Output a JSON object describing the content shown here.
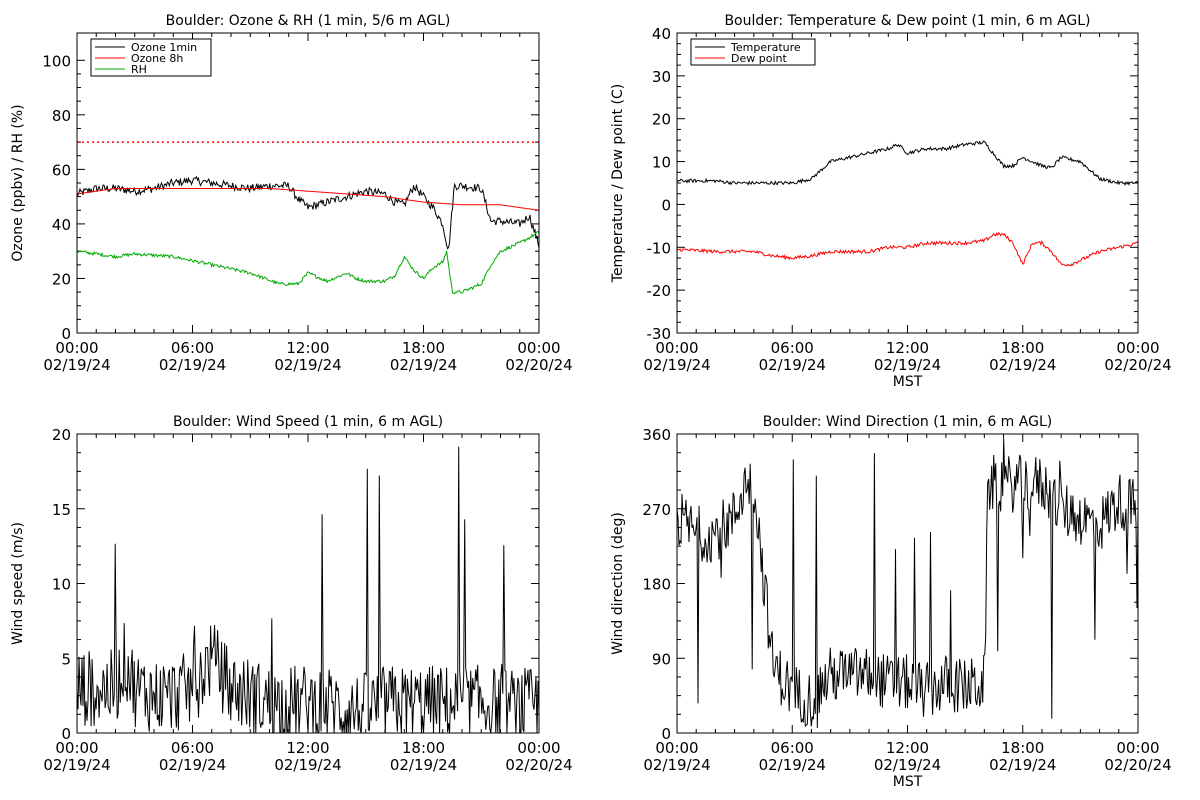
{
  "chart_data": [
    {
      "type": "line",
      "title": "Boulder: Ozone & RH (1 min, 5/6 m AGL)",
      "ylabel": "Ozone (ppbv) / RH (%)",
      "xlabel": "",
      "ylim": [
        0,
        110
      ],
      "yticks": [
        "0",
        "20",
        "40",
        "60",
        "80",
        "100"
      ],
      "ytick_values": [
        0,
        20,
        40,
        60,
        80,
        100
      ],
      "xticks": [
        "00:00\n02/19/24",
        "06:00\n02/19/24",
        "12:00\n02/19/24",
        "18:00\n02/19/24",
        "00:00\n02/20/24"
      ],
      "legend_position": "top-left",
      "reference_line": {
        "y": 70,
        "color": "#ff0000",
        "style": "dotted"
      },
      "series": [
        {
          "name": "Ozone 1min",
          "color": "#000000",
          "noise": 1.5,
          "spike": 0,
          "x": [
            0,
            1,
            2,
            3,
            4,
            5,
            6,
            7,
            8,
            9,
            10,
            11,
            11.5,
            12,
            13,
            14,
            15,
            16,
            16.5,
            17,
            17.5,
            18,
            18.5,
            19,
            19.3,
            19.6,
            20,
            21,
            21.5,
            22,
            23,
            23.5,
            24
          ],
          "y": [
            51,
            53,
            53,
            52,
            53,
            55,
            56,
            55,
            54,
            53,
            54,
            54,
            49,
            46,
            48,
            50,
            52,
            51,
            48,
            47,
            54,
            50,
            46,
            40,
            30,
            54,
            54,
            53,
            41,
            41,
            40,
            43,
            32
          ]
        },
        {
          "name": "Ozone 8h",
          "color": "#ff0000",
          "noise": 0,
          "spike": 0,
          "x": [
            0,
            2,
            4,
            6,
            8,
            10,
            12,
            14,
            16,
            18,
            20,
            22,
            24
          ],
          "y": [
            51,
            53,
            53,
            53,
            53,
            53,
            52,
            51,
            50,
            48,
            47,
            47,
            45
          ]
        },
        {
          "name": "RH",
          "color": "#00aa00",
          "noise": 0.6,
          "spike": 0,
          "x": [
            0,
            2,
            3,
            5,
            7,
            9,
            10.5,
            11.5,
            12,
            13,
            14,
            14.5,
            15,
            16,
            16.5,
            17,
            17.5,
            18,
            18.5,
            19,
            19.2,
            19.5,
            20,
            21,
            21.5,
            22,
            23,
            24
          ],
          "y": [
            30,
            28,
            29,
            28,
            25,
            22,
            18,
            18,
            22,
            19,
            22,
            20,
            19,
            19,
            21,
            28,
            23,
            20,
            24,
            26,
            30,
            15,
            15,
            18,
            25,
            30,
            33,
            37
          ]
        }
      ]
    },
    {
      "type": "line",
      "title": "Boulder: Temperature & Dew point (1 min, 6 m AGL)",
      "ylabel": "Temperature / Dew point (C)",
      "xlabel": "MST",
      "ylim": [
        -30,
        40
      ],
      "yticks": [
        "-30",
        "-20",
        "-10",
        "0",
        "10",
        "20",
        "30",
        "40"
      ],
      "ytick_values": [
        -30,
        -20,
        -10,
        0,
        10,
        20,
        30,
        40
      ],
      "xticks": [
        "00:00\n02/19/24",
        "06:00\n02/19/24",
        "12:00\n02/19/24",
        "18:00\n02/19/24",
        "00:00\n02/20/24"
      ],
      "legend_position": "top-left",
      "series": [
        {
          "name": "Temperature",
          "color": "#000000",
          "noise": 0.4,
          "spike": 0,
          "x": [
            0,
            1,
            2,
            3,
            4,
            5,
            6,
            7,
            7.5,
            8,
            9,
            10,
            11,
            11.5,
            12,
            13,
            14,
            15,
            16,
            17,
            17.5,
            18,
            18.5,
            19,
            19.5,
            20,
            21,
            22,
            23,
            24
          ],
          "y": [
            5.5,
            5.5,
            5.5,
            5,
            5,
            5,
            5,
            6,
            8,
            10,
            11,
            12,
            13,
            14,
            12,
            13,
            13,
            14,
            14.5,
            9,
            9,
            11,
            10,
            9,
            8.5,
            11,
            10,
            6,
            5,
            5
          ]
        },
        {
          "name": "Dew point",
          "color": "#ff0000",
          "noise": 0.4,
          "spike": 0,
          "x": [
            0,
            2,
            4,
            5,
            6,
            7,
            8,
            9,
            10,
            11,
            12,
            13,
            14,
            15,
            16,
            16.5,
            17,
            17.5,
            18,
            18.5,
            19,
            19.5,
            20,
            20.5,
            21,
            22,
            23,
            24
          ],
          "y": [
            -10.5,
            -11,
            -11,
            -12,
            -12.5,
            -12,
            -11,
            -11,
            -11,
            -10,
            -10,
            -9,
            -9,
            -9,
            -8.5,
            -7,
            -7,
            -9,
            -14,
            -9,
            -9,
            -11,
            -14,
            -14,
            -13,
            -11,
            -10,
            -9
          ]
        }
      ]
    },
    {
      "type": "line",
      "title": "Boulder: Wind Speed (1 min, 6 m AGL)",
      "ylabel": "Wind speed (m/s)",
      "xlabel": "",
      "ylim": [
        0,
        20
      ],
      "yticks": [
        "0",
        "5",
        "10",
        "15",
        "20"
      ],
      "ytick_values": [
        0,
        5,
        10,
        15,
        20
      ],
      "xticks": [
        "00:00\n02/19/24",
        "06:00\n02/19/24",
        "12:00\n02/19/24",
        "18:00\n02/19/24",
        "00:00\n02/20/24"
      ],
      "series": [
        {
          "name": "",
          "color": "#000000",
          "noise": 2.6,
          "spike": 0.05,
          "x": [
            0,
            1,
            2,
            2.5,
            3,
            4,
            5,
            6,
            6.5,
            7,
            7.5,
            8,
            9,
            10,
            11,
            12,
            13,
            14,
            15,
            16,
            17,
            18,
            19,
            20,
            21,
            22,
            23,
            24
          ],
          "y": [
            3,
            3,
            3,
            5,
            3,
            2.5,
            2.5,
            3,
            4,
            5,
            4,
            3,
            2.5,
            2,
            2,
            2,
            2,
            1.5,
            1.5,
            2,
            2,
            2,
            2,
            2,
            2,
            1.8,
            1.8,
            1.8
          ]
        }
      ]
    },
    {
      "type": "line",
      "title": "Boulder: Wind Direction (1 min, 6 m AGL)",
      "ylabel": "Wind direction (deg)",
      "xlabel": "MST",
      "ylim": [
        0,
        360
      ],
      "yticks": [
        "0",
        "90",
        "180",
        "270",
        "360"
      ],
      "ytick_values": [
        0,
        90,
        180,
        270,
        360
      ],
      "xticks": [
        "00:00\n02/19/24",
        "06:00\n02/19/24",
        "12:00\n02/19/24",
        "18:00\n02/19/24",
        "00:00\n02/20/24"
      ],
      "series": [
        {
          "name": "",
          "color": "#000000",
          "noise": 35,
          "spike": 0.06,
          "x": [
            0,
            1,
            2,
            3,
            3.5,
            4,
            5,
            6,
            7,
            8,
            9,
            10,
            11,
            12,
            13,
            14,
            15,
            16,
            16.2,
            17,
            18,
            19,
            20,
            21,
            22,
            23,
            24
          ],
          "y": [
            260,
            240,
            240,
            260,
            300,
            300,
            80,
            50,
            40,
            70,
            70,
            70,
            60,
            60,
            50,
            60,
            55,
            60,
            300,
            300,
            300,
            300,
            270,
            260,
            250,
            280,
            270
          ]
        }
      ]
    }
  ]
}
